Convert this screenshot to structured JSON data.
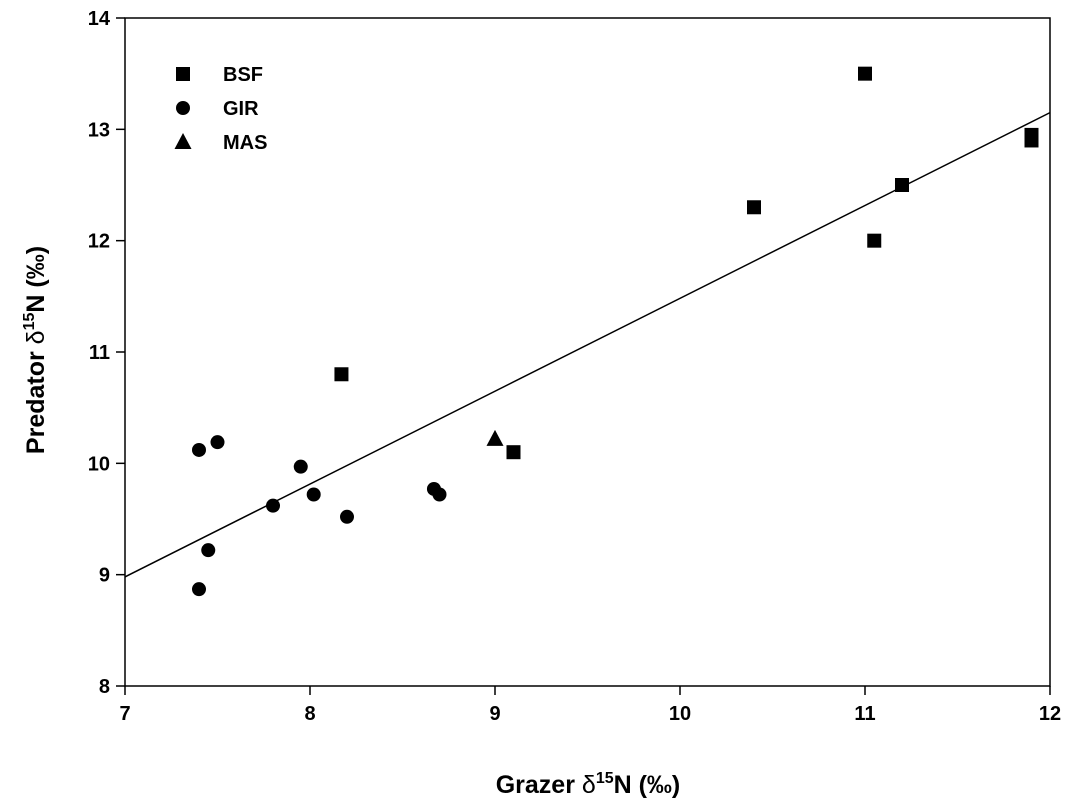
{
  "chart_data": {
    "type": "scatter",
    "xlabel": {
      "prefix": "Grazer ",
      "delta": "δ",
      "sup": "15",
      "suffix": "N (‰)"
    },
    "ylabel": {
      "prefix": "Predator ",
      "delta": "δ",
      "sup": "15",
      "suffix": "N (‰)"
    },
    "xlim": [
      7,
      12
    ],
    "ylim": [
      8,
      14
    ],
    "xticks": [
      7,
      8,
      9,
      10,
      11,
      12
    ],
    "yticks": [
      8,
      9,
      10,
      11,
      12,
      13,
      14
    ],
    "grid": false,
    "legend_position": "top-left",
    "series": [
      {
        "name": "BSF",
        "marker": "square",
        "points": [
          [
            8.17,
            10.8
          ],
          [
            9.1,
            10.1
          ],
          [
            10.4,
            12.3
          ],
          [
            11.0,
            13.5
          ],
          [
            11.05,
            12.0
          ],
          [
            11.2,
            12.5
          ],
          [
            11.9,
            12.95
          ],
          [
            11.9,
            12.9
          ]
        ]
      },
      {
        "name": "GIR",
        "marker": "circle",
        "points": [
          [
            7.4,
            10.12
          ],
          [
            7.5,
            10.19
          ],
          [
            7.4,
            8.87
          ],
          [
            7.45,
            9.22
          ],
          [
            7.8,
            9.62
          ],
          [
            7.95,
            9.97
          ],
          [
            8.02,
            9.72
          ],
          [
            8.2,
            9.52
          ],
          [
            8.67,
            9.77
          ],
          [
            8.7,
            9.72
          ]
        ]
      },
      {
        "name": "MAS",
        "marker": "triangle",
        "points": [
          [
            9.0,
            10.22
          ]
        ]
      }
    ],
    "regression_line": {
      "x": [
        7,
        12
      ],
      "y": [
        8.98,
        13.15
      ]
    },
    "colors": {
      "marker": "#000000",
      "axis": "#000000",
      "line": "#000000"
    }
  }
}
